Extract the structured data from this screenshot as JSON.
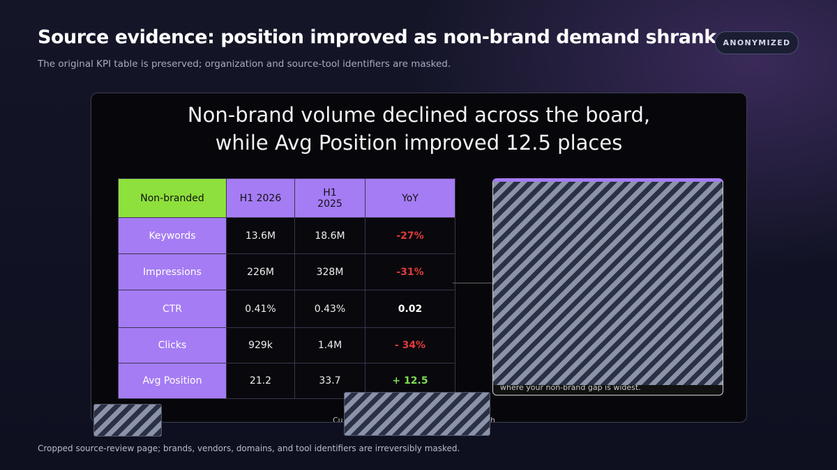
{
  "header": {
    "title": "Source evidence: position improved as non-brand demand shrank",
    "subtitle": "The original KPI table is preserved; organization and source-tool identifiers are masked.",
    "badge": "ANONYMIZED"
  },
  "slide": {
    "title_lines": [
      "Non-brand volume declined across the board,",
      "while Avg Position improved 12.5 places"
    ],
    "table": {
      "header": [
        "Non-branded",
        "H1 2026",
        "H1\n2025",
        "YoY"
      ],
      "rows": [
        [
          "Keywords",
          "13.6M",
          "18.6M",
          "-27%"
        ],
        [
          "Impressions",
          "226M",
          "328M",
          "-31%"
        ],
        [
          "CTR",
          "0.41%",
          "0.43%",
          "0.02"
        ],
        [
          "Clicks",
          "929k",
          "1.4M",
          "- 34%"
        ],
        [
          "Avg Position",
          "21.2",
          "33.7",
          "+ 12.5"
        ]
      ]
    },
    "panel_text": "where your non-brand gap is widest.",
    "caption_fragments": [
      "Cu",
      "h"
    ]
  },
  "footer": {
    "note": "Cropped source-review page; brands, vendors, domains, and tool identifiers are irreversibly masked."
  }
}
